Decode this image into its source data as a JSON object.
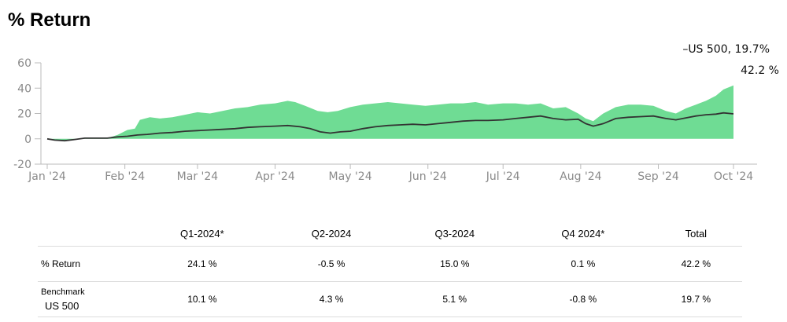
{
  "title": "% Return",
  "chart_data": {
    "type": "area",
    "x_start": "2024-01-01",
    "x_end": "2024-10-01",
    "xticks": [
      {
        "label": "Jan '24",
        "date": "2024-01-01"
      },
      {
        "label": "Feb '24",
        "date": "2024-02-01"
      },
      {
        "label": "Mar '24",
        "date": "2024-03-01"
      },
      {
        "label": "Apr '24",
        "date": "2024-04-01"
      },
      {
        "label": "May '24",
        "date": "2024-05-01"
      },
      {
        "label": "Jun '24",
        "date": "2024-06-01"
      },
      {
        "label": "Jul '24",
        "date": "2024-07-01"
      },
      {
        "label": "Aug '24",
        "date": "2024-08-01"
      },
      {
        "label": "Sep '24",
        "date": "2024-09-01"
      },
      {
        "label": "Oct '24",
        "date": "2024-10-01"
      }
    ],
    "ylim": [
      -20,
      60
    ],
    "yticks": [
      -20,
      0,
      20,
      40,
      60
    ],
    "grid": false,
    "series": [
      {
        "role": "portfolio",
        "style": "area",
        "color": "#6fdc94",
        "end_label": "42.2 %",
        "points": [
          [
            "2024-01-01",
            0
          ],
          [
            "2024-01-04",
            -1
          ],
          [
            "2024-01-08",
            -1.5
          ],
          [
            "2024-01-12",
            -0.5
          ],
          [
            "2024-01-16",
            0.5
          ],
          [
            "2024-01-20",
            0.5
          ],
          [
            "2024-01-25",
            0.5
          ],
          [
            "2024-01-29",
            3
          ],
          [
            "2024-02-02",
            7
          ],
          [
            "2024-02-05",
            8
          ],
          [
            "2024-02-07",
            15
          ],
          [
            "2024-02-11",
            17
          ],
          [
            "2024-02-15",
            16
          ],
          [
            "2024-02-20",
            17
          ],
          [
            "2024-02-25",
            19
          ],
          [
            "2024-03-01",
            21
          ],
          [
            "2024-03-06",
            20
          ],
          [
            "2024-03-11",
            22
          ],
          [
            "2024-03-16",
            24
          ],
          [
            "2024-03-21",
            25
          ],
          [
            "2024-03-26",
            27
          ],
          [
            "2024-04-01",
            28
          ],
          [
            "2024-04-06",
            30
          ],
          [
            "2024-04-09",
            29
          ],
          [
            "2024-04-13",
            26
          ],
          [
            "2024-04-18",
            22
          ],
          [
            "2024-04-22",
            21
          ],
          [
            "2024-04-26",
            22
          ],
          [
            "2024-05-01",
            25
          ],
          [
            "2024-05-06",
            27
          ],
          [
            "2024-05-11",
            28
          ],
          [
            "2024-05-16",
            29
          ],
          [
            "2024-05-21",
            28
          ],
          [
            "2024-05-26",
            27
          ],
          [
            "2024-05-31",
            26
          ],
          [
            "2024-06-05",
            27
          ],
          [
            "2024-06-10",
            28
          ],
          [
            "2024-06-15",
            28
          ],
          [
            "2024-06-20",
            29
          ],
          [
            "2024-06-25",
            27
          ],
          [
            "2024-07-01",
            28
          ],
          [
            "2024-07-06",
            28
          ],
          [
            "2024-07-11",
            27
          ],
          [
            "2024-07-16",
            28
          ],
          [
            "2024-07-21",
            24
          ],
          [
            "2024-07-26",
            25
          ],
          [
            "2024-07-31",
            20
          ],
          [
            "2024-08-03",
            16
          ],
          [
            "2024-08-06",
            14
          ],
          [
            "2024-08-10",
            20
          ],
          [
            "2024-08-15",
            25
          ],
          [
            "2024-08-20",
            27
          ],
          [
            "2024-08-25",
            27
          ],
          [
            "2024-08-30",
            26
          ],
          [
            "2024-09-04",
            22
          ],
          [
            "2024-09-08",
            20
          ],
          [
            "2024-09-12",
            24
          ],
          [
            "2024-09-16",
            27
          ],
          [
            "2024-09-20",
            30
          ],
          [
            "2024-09-24",
            34
          ],
          [
            "2024-09-27",
            39
          ],
          [
            "2024-10-01",
            42.2
          ]
        ]
      },
      {
        "role": "benchmark",
        "style": "line",
        "color": "#333333",
        "end_label": "US 500, 19.7%",
        "points": [
          [
            "2024-01-01",
            0
          ],
          [
            "2024-01-04",
            -1
          ],
          [
            "2024-01-08",
            -1.5
          ],
          [
            "2024-01-12",
            -0.5
          ],
          [
            "2024-01-16",
            0.5
          ],
          [
            "2024-01-20",
            0.5
          ],
          [
            "2024-01-25",
            0.5
          ],
          [
            "2024-01-29",
            1.5
          ],
          [
            "2024-02-02",
            2
          ],
          [
            "2024-02-06",
            3
          ],
          [
            "2024-02-10",
            3.5
          ],
          [
            "2024-02-15",
            4.5
          ],
          [
            "2024-02-20",
            5
          ],
          [
            "2024-02-25",
            6
          ],
          [
            "2024-03-01",
            6.5
          ],
          [
            "2024-03-06",
            7
          ],
          [
            "2024-03-11",
            7.5
          ],
          [
            "2024-03-16",
            8
          ],
          [
            "2024-03-21",
            9
          ],
          [
            "2024-03-26",
            9.5
          ],
          [
            "2024-04-01",
            10
          ],
          [
            "2024-04-06",
            10.5
          ],
          [
            "2024-04-11",
            9.5
          ],
          [
            "2024-04-15",
            8
          ],
          [
            "2024-04-19",
            5.5
          ],
          [
            "2024-04-23",
            4.5
          ],
          [
            "2024-04-27",
            5.5
          ],
          [
            "2024-05-01",
            6
          ],
          [
            "2024-05-06",
            8
          ],
          [
            "2024-05-11",
            9.5
          ],
          [
            "2024-05-16",
            10.5
          ],
          [
            "2024-05-21",
            11
          ],
          [
            "2024-05-26",
            11.5
          ],
          [
            "2024-05-31",
            11
          ],
          [
            "2024-06-05",
            12
          ],
          [
            "2024-06-10",
            13
          ],
          [
            "2024-06-15",
            14
          ],
          [
            "2024-06-20",
            14.5
          ],
          [
            "2024-06-25",
            14.5
          ],
          [
            "2024-07-01",
            15
          ],
          [
            "2024-07-06",
            16
          ],
          [
            "2024-07-11",
            17
          ],
          [
            "2024-07-16",
            18
          ],
          [
            "2024-07-21",
            16
          ],
          [
            "2024-07-26",
            15
          ],
          [
            "2024-07-31",
            15.5
          ],
          [
            "2024-08-03",
            12
          ],
          [
            "2024-08-06",
            10
          ],
          [
            "2024-08-10",
            12
          ],
          [
            "2024-08-15",
            16
          ],
          [
            "2024-08-20",
            17
          ],
          [
            "2024-08-25",
            17.5
          ],
          [
            "2024-08-30",
            18
          ],
          [
            "2024-09-04",
            16
          ],
          [
            "2024-09-08",
            15
          ],
          [
            "2024-09-12",
            16.5
          ],
          [
            "2024-09-16",
            18
          ],
          [
            "2024-09-20",
            19
          ],
          [
            "2024-09-24",
            19.5
          ],
          [
            "2024-09-27",
            20.5
          ],
          [
            "2024-10-01",
            19.7
          ]
        ]
      }
    ]
  },
  "table": {
    "headers": [
      "",
      "Q1-2024*",
      "Q2-2024",
      "Q3-2024",
      "Q4 2024*",
      "Total"
    ],
    "rows": [
      {
        "label": "% Return",
        "values": [
          "24.1 %",
          "-0.5 %",
          "15.0 %",
          "0.1 %",
          "42.2 %"
        ]
      },
      {
        "label": "Benchmark",
        "sublabel": "US 500",
        "values": [
          "10.1 %",
          "4.3 %",
          "5.1 %",
          "-0.8 %",
          "19.7 %"
        ]
      }
    ]
  }
}
